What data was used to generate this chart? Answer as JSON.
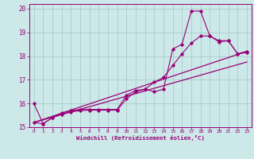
{
  "xlabel": "Windchill (Refroidissement éolien,°C)",
  "bg_color": "#cce8e8",
  "grid_color": "#aacccc",
  "line_color": "#990077",
  "xlim": [
    -0.5,
    23.5
  ],
  "ylim": [
    15,
    20.2
  ],
  "xticks": [
    0,
    1,
    2,
    3,
    4,
    5,
    6,
    7,
    8,
    9,
    10,
    11,
    12,
    13,
    14,
    15,
    16,
    17,
    18,
    19,
    20,
    21,
    22,
    23
  ],
  "yticks": [
    15,
    16,
    17,
    18,
    19,
    20
  ],
  "series1_x": [
    0,
    1,
    2,
    3,
    4,
    5,
    6,
    7,
    8,
    9,
    10,
    11,
    12,
    13,
    14,
    15,
    16,
    17,
    18,
    19,
    20,
    21,
    22,
    23
  ],
  "series1_y": [
    16.0,
    15.15,
    15.4,
    15.6,
    15.7,
    15.75,
    15.75,
    15.75,
    15.75,
    15.75,
    16.35,
    16.55,
    16.6,
    16.5,
    16.6,
    18.3,
    18.5,
    19.9,
    19.9,
    18.85,
    18.6,
    18.65,
    18.1,
    18.2
  ],
  "series2_x": [
    0,
    1,
    2,
    3,
    4,
    5,
    6,
    7,
    8,
    9,
    10,
    11,
    12,
    13,
    14,
    15,
    16,
    17,
    18,
    19,
    20,
    21,
    22,
    23
  ],
  "series2_y": [
    15.2,
    15.15,
    15.4,
    15.55,
    15.65,
    15.7,
    15.72,
    15.72,
    15.72,
    15.72,
    16.2,
    16.5,
    16.6,
    16.9,
    17.1,
    17.6,
    18.1,
    18.55,
    18.85,
    18.85,
    18.65,
    18.65,
    18.1,
    18.15
  ],
  "series3_x": [
    0,
    23
  ],
  "series3_y": [
    15.2,
    18.2
  ],
  "series4_x": [
    0,
    23
  ],
  "series4_y": [
    15.2,
    17.75
  ]
}
